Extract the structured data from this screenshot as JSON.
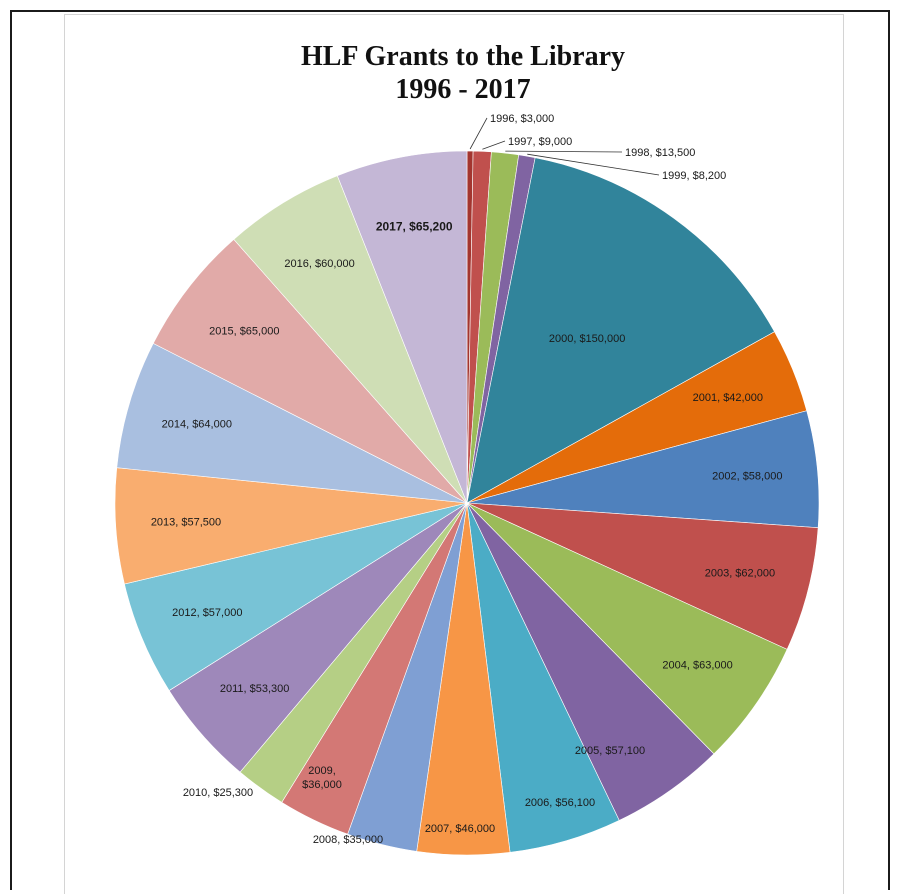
{
  "chart_data": {
    "type": "pie",
    "title": "HLF Grants to the Library",
    "subtitle": "1996 - 2017",
    "slices": [
      {
        "year": "1996",
        "label": "1996, $3,000",
        "value": 3000,
        "color": "#a3352f"
      },
      {
        "year": "1997",
        "label": "1997, $9,000",
        "value": 9000,
        "color": "#c0504d"
      },
      {
        "year": "1998",
        "label": "1998, $13,500",
        "value": 13500,
        "color": "#9bbb59"
      },
      {
        "year": "1999",
        "label": "1999, $8,200",
        "value": 8200,
        "color": "#8064a2"
      },
      {
        "year": "2000",
        "label": "2000, $150,000",
        "value": 150000,
        "color": "#31849b"
      },
      {
        "year": "2001",
        "label": "2001, $42,000",
        "value": 42000,
        "color": "#e46c0a"
      },
      {
        "year": "2002",
        "label": "2002, $58,000",
        "value": 58000,
        "color": "#4f81bd"
      },
      {
        "year": "2003",
        "label": "2003, $62,000",
        "value": 62000,
        "color": "#c0504d"
      },
      {
        "year": "2004",
        "label": "2004, $63,000",
        "value": 63000,
        "color": "#9bbb59"
      },
      {
        "year": "2005",
        "label": "2005, $57,100",
        "value": 57100,
        "color": "#8064a2"
      },
      {
        "year": "2006",
        "label": "2006, $56,100",
        "value": 56100,
        "color": "#4bacc6"
      },
      {
        "year": "2007",
        "label": "2007, $46,000",
        "value": 46000,
        "color": "#f79646"
      },
      {
        "year": "2008",
        "label": "2008, $35,000",
        "value": 35000,
        "color": "#7f9fd3"
      },
      {
        "year": "2009",
        "label": "2009, $36,000",
        "value": 36000,
        "color": "#d37875"
      },
      {
        "year": "2010",
        "label": "2010, $25,300",
        "value": 25300,
        "color": "#b5cf85"
      },
      {
        "year": "2011",
        "label": "2011, $53,300",
        "value": 53300,
        "color": "#9e88ba"
      },
      {
        "year": "2012",
        "label": "2012, $57,000",
        "value": 57000,
        "color": "#78c3d6"
      },
      {
        "year": "2013",
        "label": "2013, $57,500",
        "value": 57500,
        "color": "#f9ad6f"
      },
      {
        "year": "2014",
        "label": "2014, $64,000",
        "value": 64000,
        "color": "#a9bfe0"
      },
      {
        "year": "2015",
        "label": "2015, $65,000",
        "value": 65000,
        "color": "#e1aaa8"
      },
      {
        "year": "2016",
        "label": "2016,  $60,000",
        "value": 60000,
        "color": "#cfdeb5"
      },
      {
        "year": "2017",
        "label": "2017, $65,200",
        "value": 65200,
        "color": "#c4b7d6"
      }
    ]
  }
}
